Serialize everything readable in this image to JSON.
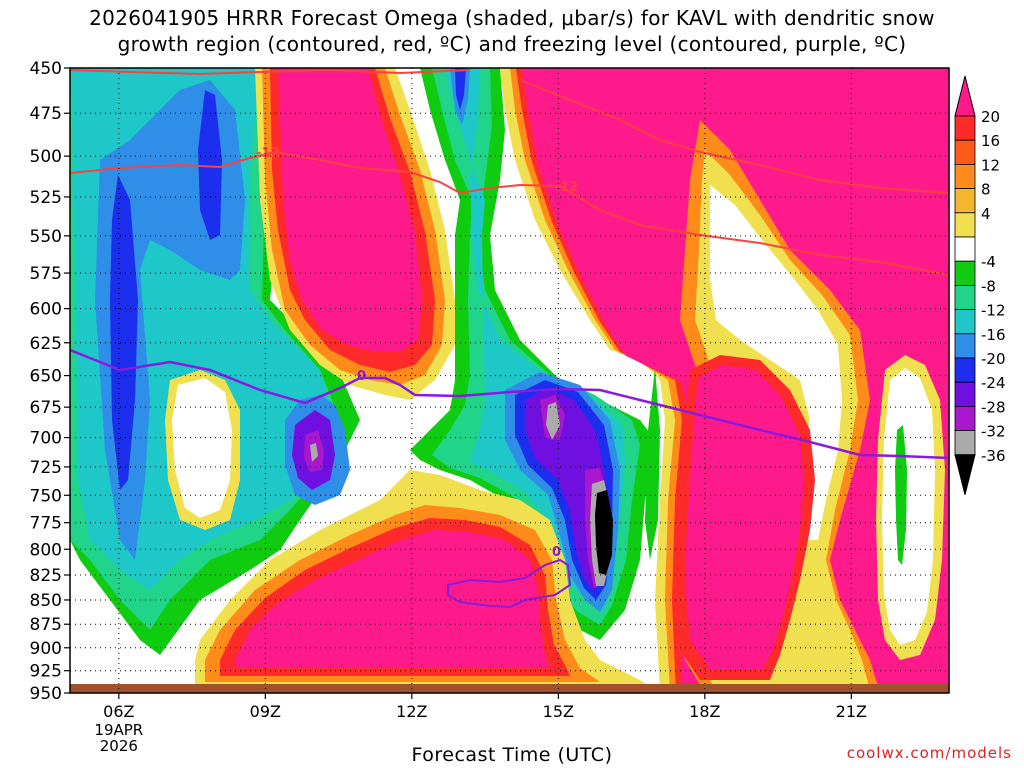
{
  "chart_data": {
    "type": "heatmap",
    "title_line1": "2026041905 HRRR Forecast Omega (shaded, μbar/s) for KAVL with dendritic snow",
    "title_line2": "growth region (contoured, red, ºC) and freezing level (contoured, purple, ºC)",
    "xlabel": "Forecast Time (UTC)",
    "watermark": "coolwx.com/models",
    "x_ticks": [
      {
        "label": "06Z",
        "hour": 6,
        "sub": [
          "19APR",
          "2026"
        ]
      },
      {
        "label": "09Z",
        "hour": 9
      },
      {
        "label": "12Z",
        "hour": 12
      },
      {
        "label": "15Z",
        "hour": 15
      },
      {
        "label": "18Z",
        "hour": 18
      },
      {
        "label": "21Z",
        "hour": 21
      }
    ],
    "x_range": [
      5.0,
      23.0
    ],
    "y_ticks": [
      450,
      475,
      500,
      525,
      550,
      575,
      600,
      625,
      650,
      675,
      700,
      725,
      750,
      775,
      800,
      825,
      850,
      875,
      900,
      925,
      950
    ],
    "y_range": [
      450,
      950
    ],
    "y_scale": "log-pressure",
    "grid": "dotted",
    "colorbar": {
      "tick_labels": [
        "20",
        "16",
        "12",
        "8",
        "4",
        "-4",
        "-8",
        "-12",
        "-16",
        "-20",
        "-24",
        "-28",
        "-32",
        "-36"
      ],
      "colors": [
        "#ff1a8c",
        "#ff2a2a",
        "#ff5a18",
        "#ff8c1a",
        "#f5b52e",
        "#f0e050",
        "#ffffff",
        "#10cc10",
        "#20d48a",
        "#1ec8c8",
        "#2e8ee8",
        "#1c2eee",
        "#7010e0",
        "#a818cc",
        "#aaaaaa",
        "#000000"
      ]
    },
    "contours": {
      "dgz_label": "-12",
      "freezing_label": "0"
    },
    "terrain_color": "#a0522d"
  }
}
